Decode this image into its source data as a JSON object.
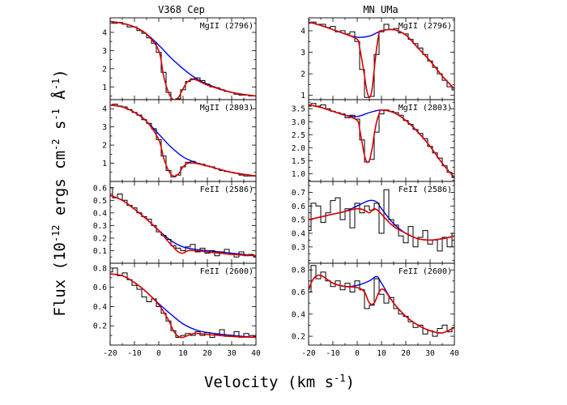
{
  "figure": {
    "xlabel": "Velocity (km s",
    "xlabel_sup": "-1",
    "xlabel_close": ")",
    "ylabel": "Flux (10",
    "ylabel_sup1": "-12",
    "ylabel_mid": " ergs cm",
    "ylabel_sup2": "-2",
    "ylabel_mid2": " s",
    "ylabel_sup3": "-1",
    "ylabel_mid3": " Å",
    "ylabel_sup4": "-1",
    "ylabel_close": ")",
    "colors": {
      "intrinsic": "#0000ff",
      "fit": "#dd0000",
      "observed": "#000000"
    }
  },
  "chart_data": [
    {
      "type": "line",
      "column": "V368 Cep",
      "row": 0,
      "label": "MgII (2796)",
      "xlim": [
        -20,
        40
      ],
      "ylim": [
        0.3,
        4.8
      ],
      "yticks": [
        1,
        2,
        3,
        4
      ],
      "xticks": [
        -20,
        -10,
        0,
        10,
        20,
        30,
        40
      ],
      "intrinsic": {
        "x": [
          -20,
          -15,
          -10,
          -5,
          0,
          5,
          10,
          15,
          20,
          30,
          40
        ],
        "y": [
          4.6,
          4.5,
          4.3,
          3.9,
          3.3,
          2.6,
          2.0,
          1.5,
          1.15,
          0.7,
          0.5
        ]
      },
      "fit": {
        "x": [
          -20,
          -15,
          -10,
          -5,
          0,
          2,
          4,
          6,
          8,
          10,
          12,
          15,
          20,
          30,
          40
        ],
        "y": [
          4.6,
          4.5,
          4.3,
          3.9,
          3.0,
          1.6,
          0.7,
          0.3,
          0.4,
          0.9,
          1.3,
          1.4,
          1.1,
          0.7,
          0.5
        ]
      },
      "observed": {
        "x": [
          -20,
          -18,
          -16,
          -14,
          -12,
          -10,
          -8,
          -6,
          -4,
          -2,
          0,
          2,
          4,
          6,
          8,
          10,
          12,
          14,
          16,
          18,
          20,
          22,
          24,
          26,
          28,
          30,
          32,
          34,
          36,
          38,
          40
        ],
        "y": [
          4.6,
          4.5,
          4.55,
          4.45,
          4.3,
          4.3,
          4.1,
          3.95,
          3.7,
          3.4,
          2.9,
          1.8,
          0.7,
          0.3,
          0.35,
          0.85,
          1.3,
          1.45,
          1.5,
          1.35,
          1.15,
          1.0,
          0.95,
          0.85,
          0.75,
          0.7,
          0.6,
          0.55,
          0.55,
          0.5,
          0.5
        ]
      }
    },
    {
      "type": "line",
      "column": "V368 Cep",
      "row": 1,
      "label": "MgII (2803)",
      "xlim": [
        -20,
        40
      ],
      "ylim": [
        0.0,
        4.5
      ],
      "yticks": [
        1,
        2,
        3,
        4
      ],
      "xticks": [
        -20,
        -10,
        0,
        10,
        20,
        30,
        40
      ],
      "intrinsic": {
        "x": [
          -20,
          -15,
          -10,
          -5,
          0,
          5,
          10,
          15,
          20,
          30,
          40
        ],
        "y": [
          4.2,
          4.1,
          3.8,
          3.3,
          2.6,
          1.9,
          1.35,
          1.05,
          0.85,
          0.5,
          0.3
        ]
      },
      "fit": {
        "x": [
          -20,
          -15,
          -10,
          -5,
          0,
          2,
          4,
          6,
          8,
          10,
          12,
          15,
          20,
          30,
          40
        ],
        "y": [
          4.2,
          4.1,
          3.8,
          3.3,
          2.3,
          1.3,
          0.6,
          0.3,
          0.4,
          0.8,
          1.0,
          1.0,
          0.85,
          0.5,
          0.3
        ]
      },
      "observed": {
        "x": [
          -20,
          -18,
          -16,
          -14,
          -12,
          -10,
          -8,
          -6,
          -4,
          -2,
          0,
          2,
          4,
          6,
          8,
          10,
          12,
          14,
          16,
          18,
          20,
          22,
          24,
          26,
          28,
          30,
          32,
          34,
          36,
          38,
          40
        ],
        "y": [
          4.2,
          4.25,
          4.15,
          4.1,
          3.95,
          3.8,
          3.65,
          3.4,
          3.2,
          2.9,
          2.3,
          1.4,
          0.6,
          0.25,
          0.35,
          0.8,
          1.05,
          1.1,
          1.0,
          0.95,
          0.85,
          0.8,
          0.7,
          0.6,
          0.55,
          0.5,
          0.45,
          0.35,
          0.3,
          0.3,
          0.3
        ]
      }
    },
    {
      "type": "line",
      "column": "V368 Cep",
      "row": 2,
      "label": "FeII (2586)",
      "xlim": [
        -20,
        40
      ],
      "ylim": [
        0.0,
        0.65
      ],
      "yticks": [
        0.1,
        0.2,
        0.3,
        0.4,
        0.5,
        0.6
      ],
      "xticks": [
        -20,
        -10,
        0,
        10,
        20,
        30,
        40
      ],
      "intrinsic": {
        "x": [
          -20,
          -15,
          -10,
          -5,
          0,
          5,
          10,
          15,
          20,
          30,
          40
        ],
        "y": [
          0.54,
          0.5,
          0.43,
          0.35,
          0.26,
          0.18,
          0.13,
          0.11,
          0.1,
          0.08,
          0.06
        ]
      },
      "fit": {
        "x": [
          -20,
          -15,
          -10,
          -5,
          0,
          4,
          6,
          8,
          10,
          12,
          15,
          20,
          30,
          40
        ],
        "y": [
          0.54,
          0.5,
          0.43,
          0.35,
          0.26,
          0.17,
          0.13,
          0.09,
          0.08,
          0.1,
          0.1,
          0.09,
          0.07,
          0.06
        ]
      },
      "observed": {
        "x": [
          -20,
          -18,
          -16,
          -14,
          -12,
          -10,
          -8,
          -6,
          -4,
          -2,
          0,
          2,
          4,
          6,
          8,
          10,
          12,
          14,
          16,
          18,
          20,
          22,
          24,
          26,
          28,
          30,
          32,
          34,
          36,
          38,
          40
        ],
        "y": [
          0.6,
          0.52,
          0.55,
          0.5,
          0.46,
          0.44,
          0.4,
          0.37,
          0.35,
          0.3,
          0.25,
          0.22,
          0.19,
          0.14,
          0.12,
          0.1,
          0.13,
          0.15,
          0.09,
          0.12,
          0.08,
          0.1,
          0.06,
          0.09,
          0.11,
          0.07,
          0.05,
          0.09,
          0.06,
          0.07,
          0.05
        ]
      }
    },
    {
      "type": "line",
      "column": "V368 Cep",
      "row": 3,
      "label": "FeII (2600)",
      "xlim": [
        -20,
        40
      ],
      "ylim": [
        0.0,
        0.85
      ],
      "yticks": [
        0.2,
        0.4,
        0.6,
        0.8
      ],
      "xticks": [
        -20,
        -10,
        0,
        10,
        20,
        30,
        40
      ],
      "intrinsic": {
        "x": [
          -20,
          -15,
          -10,
          -5,
          0,
          5,
          10,
          15,
          20,
          30,
          40
        ],
        "y": [
          0.74,
          0.72,
          0.65,
          0.55,
          0.43,
          0.32,
          0.22,
          0.16,
          0.13,
          0.1,
          0.08
        ]
      },
      "fit": {
        "x": [
          -20,
          -15,
          -10,
          -5,
          0,
          4,
          6,
          8,
          10,
          12,
          15,
          20,
          30,
          40
        ],
        "y": [
          0.74,
          0.72,
          0.65,
          0.55,
          0.42,
          0.26,
          0.15,
          0.09,
          0.08,
          0.1,
          0.12,
          0.11,
          0.09,
          0.08
        ]
      },
      "observed": {
        "x": [
          -20,
          -18,
          -16,
          -14,
          -12,
          -10,
          -8,
          -6,
          -4,
          -2,
          0,
          2,
          4,
          6,
          8,
          10,
          12,
          14,
          16,
          18,
          20,
          22,
          24,
          26,
          28,
          30,
          32,
          34,
          36,
          38,
          40
        ],
        "y": [
          0.76,
          0.8,
          0.72,
          0.75,
          0.68,
          0.62,
          0.58,
          0.5,
          0.45,
          0.48,
          0.4,
          0.33,
          0.25,
          0.15,
          0.08,
          0.1,
          0.12,
          0.1,
          0.14,
          0.1,
          0.13,
          0.08,
          0.11,
          0.16,
          0.09,
          0.1,
          0.14,
          0.08,
          0.12,
          0.1,
          0.09
        ]
      }
    },
    {
      "type": "line",
      "column": "MN UMa",
      "row": 0,
      "label": "MgII (2796)",
      "xlim": [
        -20,
        40
      ],
      "ylim": [
        0.8,
        4.6
      ],
      "yticks": [
        1,
        2,
        3,
        4
      ],
      "xticks": [
        -20,
        -10,
        0,
        10,
        20,
        30,
        40
      ],
      "intrinsic": {
        "x": [
          -20,
          -15,
          -10,
          -5,
          0,
          5,
          10,
          15,
          20,
          25,
          30,
          35,
          40
        ],
        "y": [
          4.4,
          4.25,
          4.05,
          3.85,
          3.7,
          3.75,
          4.0,
          4.05,
          3.8,
          3.2,
          2.6,
          1.9,
          1.3
        ]
      },
      "fit": {
        "x": [
          -20,
          -15,
          -10,
          -5,
          0,
          1,
          2,
          3,
          4,
          5,
          6,
          7,
          8,
          9,
          10,
          15,
          20,
          25,
          30,
          35,
          40
        ],
        "y": [
          4.4,
          4.25,
          4.05,
          3.85,
          3.6,
          3.2,
          2.6,
          1.9,
          1.2,
          0.9,
          1.2,
          2.2,
          3.2,
          3.9,
          4.0,
          4.05,
          3.8,
          3.2,
          2.6,
          1.9,
          1.3
        ]
      },
      "observed": {
        "x": [
          -20,
          -18,
          -16,
          -14,
          -12,
          -10,
          -8,
          -6,
          -4,
          -2,
          0,
          2,
          4,
          6,
          8,
          10,
          12,
          14,
          16,
          18,
          20,
          22,
          24,
          26,
          28,
          30,
          32,
          34,
          36,
          38,
          40
        ],
        "y": [
          4.35,
          4.4,
          4.3,
          4.3,
          4.15,
          4.2,
          3.95,
          4.0,
          3.85,
          3.95,
          3.5,
          2.2,
          0.9,
          0.95,
          2.9,
          3.95,
          4.3,
          4.05,
          4.1,
          3.9,
          3.85,
          3.6,
          3.4,
          3.2,
          2.9,
          2.6,
          2.3,
          2.0,
          1.7,
          1.4,
          1.25
        ]
      }
    },
    {
      "type": "line",
      "column": "MN UMa",
      "row": 1,
      "label": "MgII (2803)",
      "xlim": [
        -20,
        40
      ],
      "ylim": [
        0.7,
        3.85
      ],
      "yticks": [
        1.0,
        1.5,
        2.0,
        2.5,
        3.0,
        3.5
      ],
      "xticks": [
        -20,
        -10,
        0,
        10,
        20,
        30,
        40
      ],
      "intrinsic": {
        "x": [
          -20,
          -15,
          -10,
          -5,
          0,
          5,
          10,
          15,
          20,
          25,
          30,
          35,
          40
        ],
        "y": [
          3.65,
          3.55,
          3.4,
          3.25,
          3.2,
          3.35,
          3.45,
          3.35,
          3.05,
          2.6,
          2.05,
          1.4,
          0.85
        ]
      },
      "fit": {
        "x": [
          -20,
          -15,
          -10,
          -5,
          0,
          1,
          2,
          3,
          4,
          5,
          6,
          7,
          8,
          9,
          10,
          15,
          20,
          25,
          30,
          35,
          40
        ],
        "y": [
          3.65,
          3.55,
          3.4,
          3.25,
          3.05,
          2.7,
          2.2,
          1.7,
          1.45,
          1.5,
          1.9,
          2.5,
          3.0,
          3.3,
          3.45,
          3.35,
          3.05,
          2.6,
          2.05,
          1.4,
          0.85
        ]
      },
      "observed": {
        "x": [
          -20,
          -18,
          -16,
          -14,
          -12,
          -10,
          -8,
          -6,
          -4,
          -2,
          0,
          2,
          4,
          6,
          8,
          10,
          12,
          14,
          16,
          18,
          20,
          22,
          24,
          26,
          28,
          30,
          32,
          34,
          36,
          38,
          40
        ],
        "y": [
          3.6,
          3.7,
          3.6,
          3.65,
          3.5,
          3.4,
          3.35,
          3.3,
          3.15,
          3.25,
          3.1,
          2.3,
          1.45,
          1.55,
          2.6,
          3.3,
          3.45,
          3.4,
          3.35,
          3.25,
          3.05,
          2.9,
          2.7,
          2.55,
          2.35,
          2.05,
          1.8,
          1.6,
          1.3,
          1.05,
          0.85
        ]
      }
    },
    {
      "type": "line",
      "column": "MN UMa",
      "row": 2,
      "label": "FeII (2586)",
      "xlim": [
        -20,
        40
      ],
      "ylim": [
        0.18,
        0.78
      ],
      "yticks": [
        0.3,
        0.4,
        0.5,
        0.6,
        0.7
      ],
      "xticks": [
        -20,
        -10,
        0,
        10,
        20,
        30,
        40
      ],
      "intrinsic": {
        "x": [
          -20,
          -15,
          -10,
          -5,
          0,
          5,
          8,
          10,
          15,
          20,
          25,
          30,
          35,
          40
        ],
        "y": [
          0.5,
          0.52,
          0.54,
          0.56,
          0.6,
          0.64,
          0.63,
          0.58,
          0.47,
          0.4,
          0.36,
          0.35,
          0.36,
          0.38
        ]
      },
      "fit": {
        "x": [
          -20,
          -15,
          -10,
          -5,
          0,
          3,
          5,
          7,
          9,
          11,
          15,
          20,
          25,
          30,
          35,
          40
        ],
        "y": [
          0.5,
          0.52,
          0.54,
          0.56,
          0.58,
          0.57,
          0.55,
          0.58,
          0.56,
          0.52,
          0.45,
          0.4,
          0.36,
          0.35,
          0.36,
          0.38
        ]
      },
      "observed": {
        "x": [
          -20,
          -18,
          -16,
          -14,
          -12,
          -10,
          -8,
          -6,
          -4,
          -2,
          0,
          2,
          4,
          6,
          8,
          10,
          12,
          14,
          16,
          18,
          20,
          22,
          24,
          26,
          28,
          30,
          32,
          34,
          36,
          38,
          40
        ],
        "y": [
          0.42,
          0.62,
          0.6,
          0.48,
          0.55,
          0.64,
          0.66,
          0.5,
          0.58,
          0.44,
          0.62,
          0.55,
          0.6,
          0.57,
          0.62,
          0.4,
          0.72,
          0.5,
          0.46,
          0.38,
          0.33,
          0.45,
          0.3,
          0.37,
          0.42,
          0.32,
          0.35,
          0.27,
          0.37,
          0.3,
          0.4
        ]
      }
    },
    {
      "type": "line",
      "column": "MN UMa",
      "row": 3,
      "label": "FeII (2600)",
      "xlim": [
        -20,
        40
      ],
      "ylim": [
        0.12,
        0.86
      ],
      "yticks": [
        0.2,
        0.4,
        0.6,
        0.8
      ],
      "xticks": [
        -20,
        -10,
        0,
        10,
        20,
        30,
        40
      ],
      "intrinsic": {
        "x": [
          -20,
          -18,
          -15,
          -10,
          -5,
          0,
          5,
          8,
          10,
          15,
          20,
          25,
          30,
          35,
          40
        ],
        "y": [
          0.62,
          0.72,
          0.75,
          0.68,
          0.65,
          0.66,
          0.7,
          0.74,
          0.68,
          0.5,
          0.38,
          0.3,
          0.25,
          0.23,
          0.28
        ]
      },
      "fit": {
        "x": [
          -20,
          -18,
          -15,
          -10,
          -5,
          0,
          3,
          5,
          7,
          9,
          11,
          15,
          20,
          25,
          30,
          35,
          40
        ],
        "y": [
          0.62,
          0.72,
          0.75,
          0.68,
          0.65,
          0.64,
          0.6,
          0.5,
          0.5,
          0.6,
          0.62,
          0.5,
          0.38,
          0.3,
          0.25,
          0.23,
          0.28
        ]
      },
      "observed": {
        "x": [
          -20,
          -18,
          -16,
          -14,
          -12,
          -10,
          -8,
          -6,
          -4,
          -2,
          0,
          2,
          4,
          6,
          8,
          10,
          12,
          14,
          16,
          18,
          20,
          22,
          24,
          26,
          28,
          30,
          32,
          34,
          36,
          38,
          40
        ],
        "y": [
          0.6,
          0.84,
          0.72,
          0.78,
          0.7,
          0.65,
          0.7,
          0.62,
          0.68,
          0.6,
          0.7,
          0.62,
          0.45,
          0.48,
          0.72,
          0.58,
          0.5,
          0.55,
          0.45,
          0.4,
          0.38,
          0.33,
          0.28,
          0.3,
          0.22,
          0.25,
          0.2,
          0.27,
          0.3,
          0.24,
          0.28
        ]
      }
    }
  ]
}
